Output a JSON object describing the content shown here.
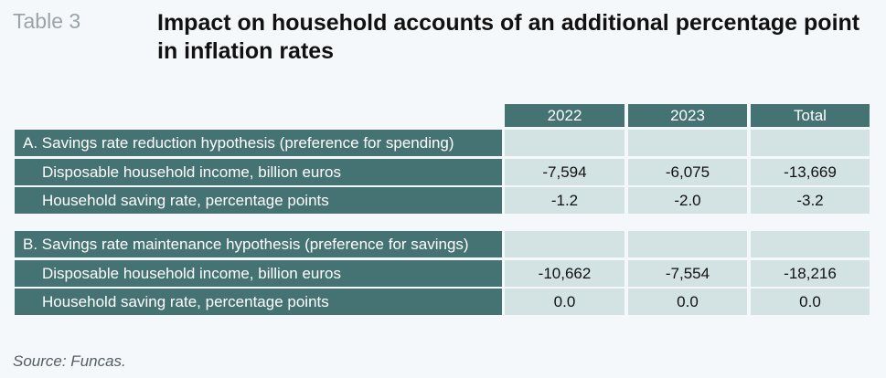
{
  "table_label": "Table 3",
  "title": "Impact on household accounts of an additional percentage point in inflation rates",
  "columns": [
    "2022",
    "2023",
    "Total"
  ],
  "sections": [
    {
      "label": "A. Savings rate reduction hypothesis (preference for spending)",
      "rows": [
        {
          "label": "Disposable household income, billion euros",
          "values": [
            "-7,594",
            "-6,075",
            "-13,669"
          ]
        },
        {
          "label": "Household saving rate, percentage points",
          "values": [
            "-1.2",
            "-2.0",
            "-3.2"
          ]
        }
      ]
    },
    {
      "label": "B. Savings rate maintenance hypothesis (preference for savings)",
      "rows": [
        {
          "label": "Disposable household income, billion euros",
          "values": [
            "-10,662",
            "-7,554",
            "-18,216"
          ]
        },
        {
          "label": "Household saving rate, percentage points",
          "values": [
            "0.0",
            "0.0",
            "0.0"
          ]
        }
      ]
    }
  ],
  "source": "Source: Funcas.",
  "colors": {
    "header_fill": "#457373",
    "value_fill": "#d3e3e3",
    "background": "#f5f8fa"
  }
}
